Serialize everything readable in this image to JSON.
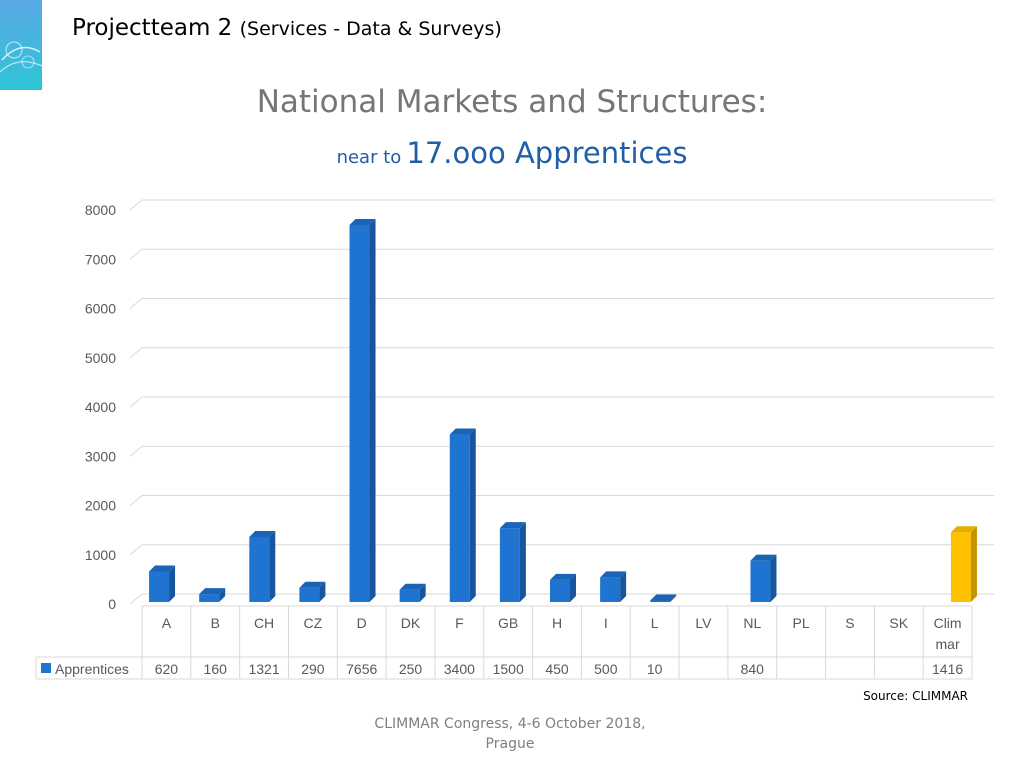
{
  "header": {
    "title": "Projectteam 2",
    "subtitle": "(Services - Data & Surveys)"
  },
  "chart_data": {
    "type": "bar",
    "title": "National Markets and Structures:",
    "subtitle_prefix": "near to",
    "subtitle_main": "17.ooo Apprentices",
    "categories": [
      "A",
      "B",
      "CH",
      "CZ",
      "D",
      "DK",
      "F",
      "GB",
      "H",
      "I",
      "L",
      "LV",
      "NL",
      "PL",
      "S",
      "SK",
      "Clim mar"
    ],
    "series": [
      {
        "name": "Apprentices",
        "values": [
          620,
          160,
          1321,
          290,
          7656,
          250,
          3400,
          1500,
          450,
          500,
          10,
          null,
          840,
          null,
          null,
          null,
          1416
        ],
        "color": "#1f74d2",
        "highlight_color": "#ffc000"
      }
    ],
    "ylim": [
      0,
      8000
    ],
    "yticks": [
      0,
      1000,
      2000,
      3000,
      4000,
      5000,
      6000,
      7000,
      8000
    ],
    "grid": true,
    "legend": "data-table",
    "style": "3d-column"
  },
  "source": "Source: CLIMMAR",
  "footer": "CLIMMAR Congress, 4-6 October 2018, Prague"
}
